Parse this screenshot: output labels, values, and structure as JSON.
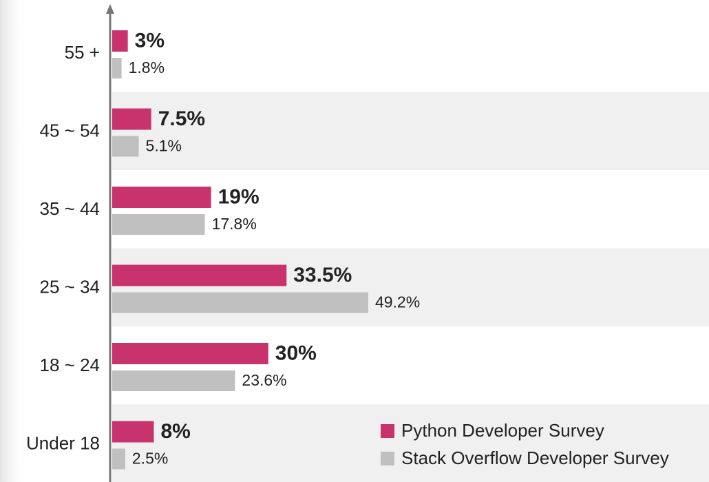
{
  "chart_data": {
    "type": "hbar",
    "categories": [
      "55 +",
      "45 ~ 54",
      "35 ~ 44",
      "25 ~ 34",
      "18 ~ 24",
      "Under 18"
    ],
    "series": [
      {
        "name": "Python Developer Survey",
        "color": "#c8336e",
        "values": [
          3,
          7.5,
          19,
          33.5,
          30,
          8
        ],
        "value_labels": [
          "3%",
          "7.5%",
          "19%",
          "33.5%",
          "30%",
          "8%"
        ]
      },
      {
        "name": "Stack Overflow Developer Survey",
        "color": "#c0c0c0",
        "values": [
          1.8,
          5.1,
          17.8,
          49.2,
          23.6,
          2.5
        ],
        "value_labels": [
          "1.8%",
          "5.1%",
          "17.8%",
          "49.2%",
          "23.6%",
          "2.5%"
        ]
      }
    ],
    "legend": "lower right"
  }
}
